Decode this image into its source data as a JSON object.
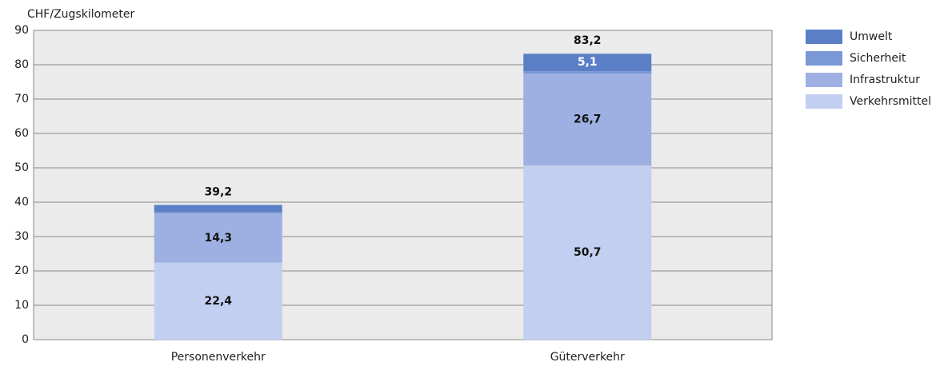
{
  "chart_data": {
    "type": "stacked_bar",
    "y_label": "CHF/Zugskilometer",
    "categories": [
      "Personenverkehr",
      "Güterverkehr"
    ],
    "series": [
      {
        "name": "Verkehrsmittel",
        "color": "#c3cff0",
        "values": [
          22.4,
          50.7
        ],
        "value_labels": [
          "22,4",
          "50,7"
        ]
      },
      {
        "name": "Infrastruktur",
        "color": "#9eb0e2",
        "values": [
          14.3,
          26.7
        ],
        "value_labels": [
          "14,3",
          "26,7"
        ]
      },
      {
        "name": "Sicherheit",
        "color": "#7a97d6",
        "values": [
          0.5,
          0.7
        ],
        "value_labels": [
          null,
          null
        ]
      },
      {
        "name": "Umwelt",
        "color": "#5b7fc7",
        "values": [
          2.0,
          5.1
        ],
        "value_labels": [
          null,
          "5,1"
        ]
      }
    ],
    "totals": [
      39.2,
      83.2
    ],
    "total_labels": [
      "39,2",
      "83,2"
    ],
    "ylim": [
      0,
      90
    ],
    "yticks": [
      0,
      10,
      20,
      30,
      40,
      50,
      60,
      70,
      80,
      90
    ],
    "grid": true,
    "legend": "right"
  }
}
